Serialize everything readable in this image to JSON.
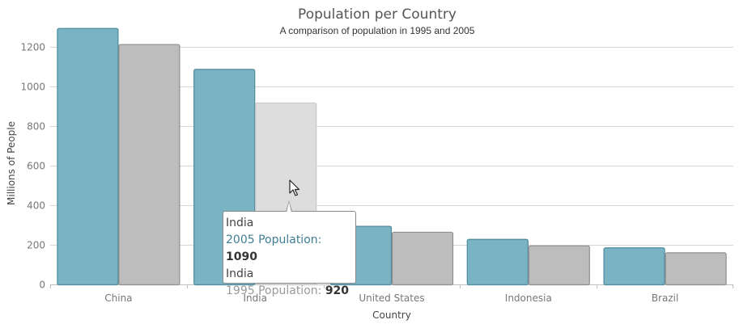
{
  "chart_data": {
    "type": "bar",
    "title": "Population per Country",
    "subtitle": "A comparison of population in 1995 and 2005",
    "xlabel": "Country",
    "ylabel": "Millions of People",
    "categories": [
      "China",
      "India",
      "United States",
      "Indonesia",
      "Brazil"
    ],
    "series": [
      {
        "name": "2005 Population",
        "color": "#7ab3c3",
        "values": [
          1297,
          1090,
          296,
          230,
          187
        ]
      },
      {
        "name": "1995 Population",
        "color": "#bdbdbd",
        "values": [
          1216,
          920,
          266,
          197,
          162
        ]
      }
    ],
    "ylim": [
      0,
      1300
    ],
    "yticks": [
      0,
      200,
      400,
      600,
      800,
      1000,
      1200
    ],
    "grid": true,
    "highlight": {
      "category": "India",
      "series": "1995 Population",
      "color": "#dddddd"
    }
  },
  "tooltip": {
    "items": [
      {
        "category": "India",
        "series_label": "2005 Population:",
        "value": "1090",
        "color": "#3f7e93"
      },
      {
        "category": "India",
        "series_label": "1995 Population:",
        "value": "920",
        "color": "#9a9a9a"
      }
    ]
  },
  "cursor": {
    "icon": "arrow-cursor-icon"
  }
}
